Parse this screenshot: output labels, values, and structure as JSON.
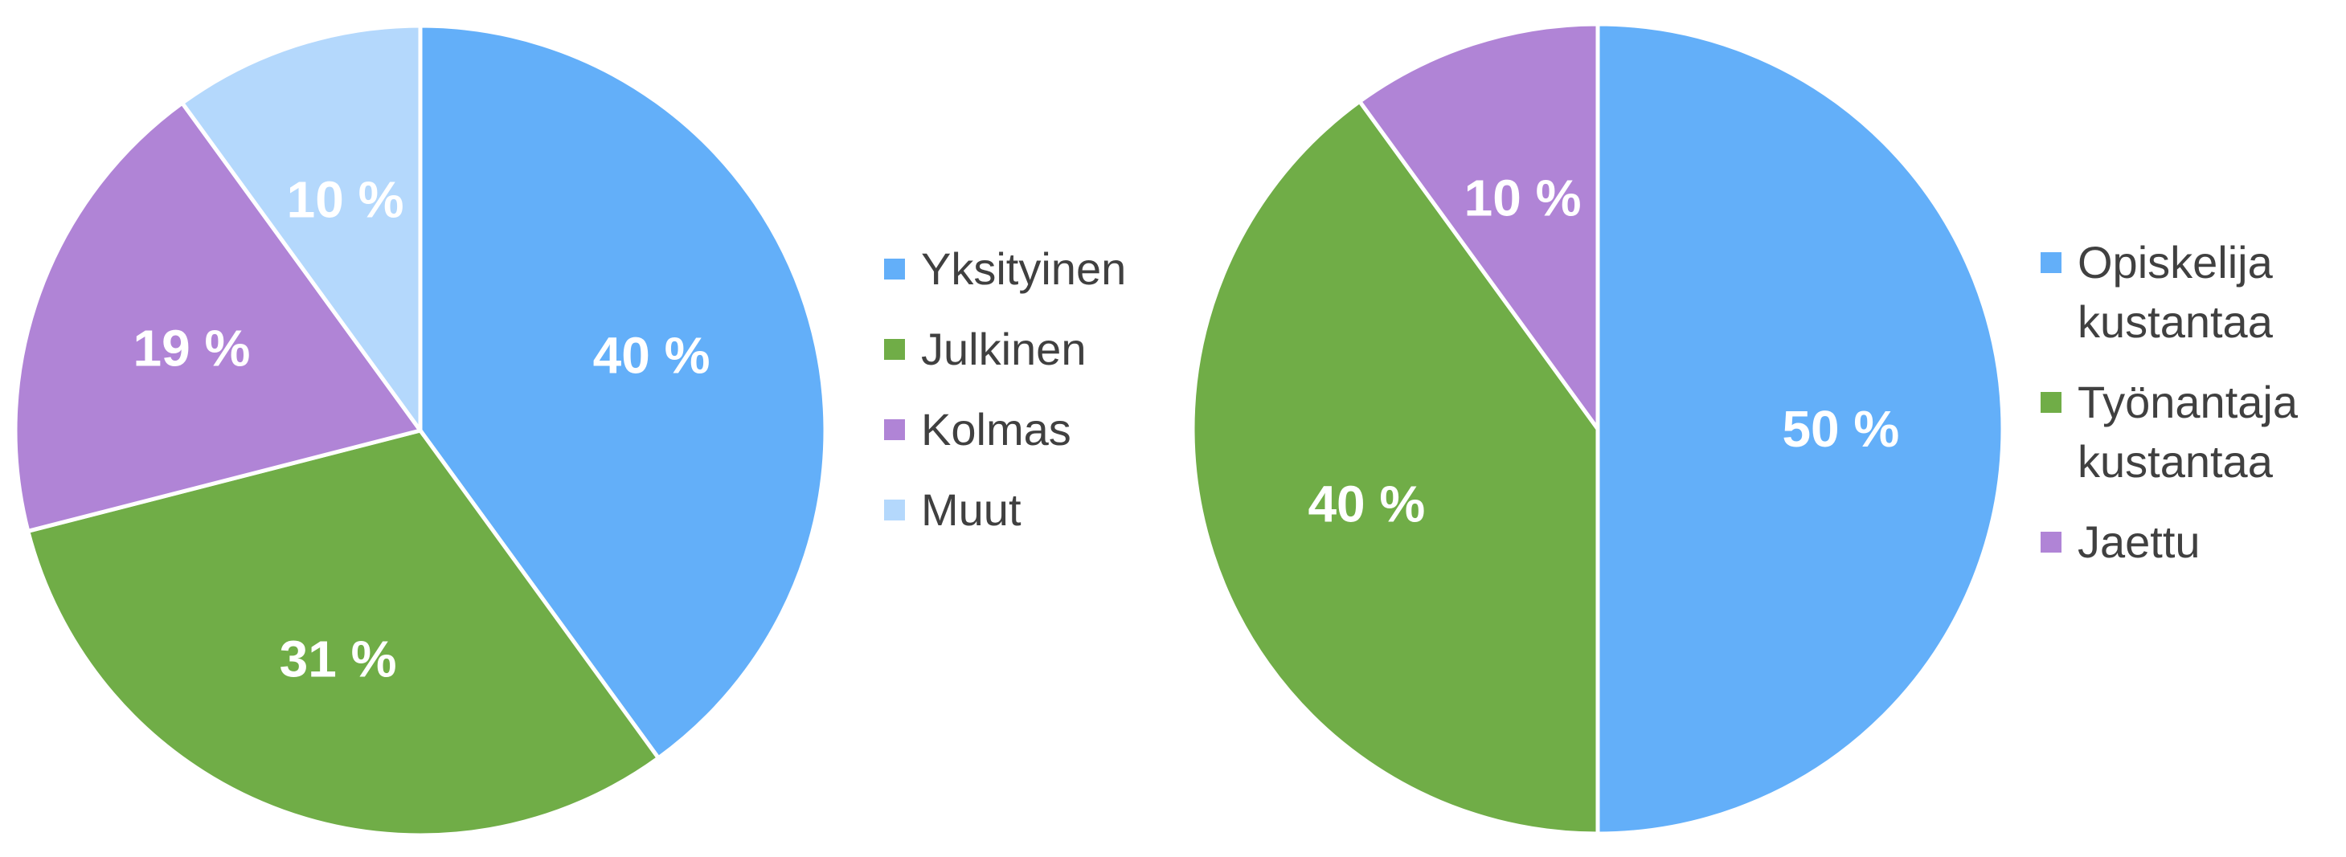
{
  "chart_data": [
    {
      "type": "pie",
      "categories": [
        "Yksityinen",
        "Julkinen",
        "Kolmas",
        "Muut"
      ],
      "values": [
        40,
        31,
        19,
        10
      ],
      "value_labels": [
        "40 %",
        "31 %",
        "19 %",
        "10 %"
      ],
      "colors": [
        "#63aff9",
        "#70ad47",
        "#b084d6",
        "#b4d8fc"
      ],
      "legend": "right"
    },
    {
      "type": "pie",
      "categories": [
        "Opiskelija kustantaa",
        "Työnantaja kustantaa",
        "Jaettu"
      ],
      "values": [
        50,
        40,
        10
      ],
      "value_labels": [
        "50 %",
        "40 %",
        "10 %"
      ],
      "colors": [
        "#63aff9",
        "#70ad47",
        "#b084d6"
      ],
      "legend": "right"
    }
  ]
}
